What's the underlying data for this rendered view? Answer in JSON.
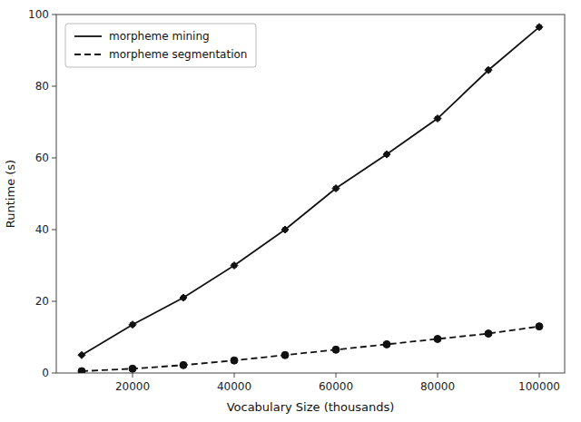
{
  "chart_data": {
    "type": "line",
    "x": [
      10000,
      20000,
      30000,
      40000,
      50000,
      60000,
      70000,
      80000,
      90000,
      100000
    ],
    "xlabel": "Vocabulary Size (thousands)",
    "ylabel": "Runtime (s)",
    "xlim": [
      5000,
      105000
    ],
    "ylim": [
      0,
      100
    ],
    "xticks": [
      20000,
      40000,
      60000,
      80000,
      100000
    ],
    "yticks": [
      0,
      20,
      40,
      60,
      80,
      100
    ],
    "grid": false,
    "legend": "upper left",
    "series": [
      {
        "name": "morpheme mining",
        "color": "#111111",
        "marker": "diamond",
        "line_style": "solid",
        "values": [
          5.0,
          13.5,
          21.0,
          30.0,
          40.0,
          51.5,
          61.0,
          71.0,
          84.5,
          96.5
        ],
        "yerr": [
          0.3,
          0.5,
          0.5,
          0.5,
          0.5,
          0.5,
          0.5,
          0.5,
          0.5,
          0.5
        ]
      },
      {
        "name": "morpheme segmentation",
        "color": "#111111",
        "marker": "circle",
        "line_style": "dashed",
        "values": [
          0.5,
          1.2,
          2.2,
          3.5,
          5.0,
          6.5,
          8.0,
          9.5,
          11.0,
          13.0
        ],
        "yerr": [
          0.15,
          0.15,
          0.15,
          0.15,
          0.15,
          0.15,
          0.15,
          0.15,
          0.15,
          0.15
        ]
      }
    ]
  }
}
